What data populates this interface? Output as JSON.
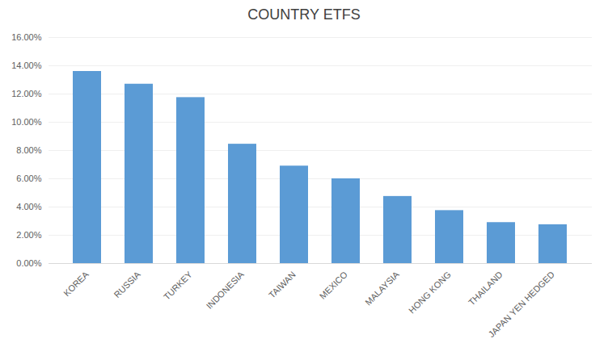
{
  "chart_data": {
    "type": "bar",
    "title": "COUNTRY ETFS",
    "categories": [
      "KOREA",
      "RUSSIA",
      "TURKEY",
      "INDONESIA",
      "TAIWAN",
      "MEXICO",
      "MALAYSIA",
      "HONG KONG",
      "THAILAND",
      "JAPAN YEN HEDGED"
    ],
    "values": [
      0.136,
      0.127,
      0.1175,
      0.0845,
      0.069,
      0.06,
      0.0475,
      0.0375,
      0.029,
      0.0275
    ],
    "color": "#5B9BD5",
    "ylim": [
      0,
      0.16
    ],
    "yticks": [
      {
        "value": 0.0,
        "label": "0.00%"
      },
      {
        "value": 0.02,
        "label": "2.00%"
      },
      {
        "value": 0.04,
        "label": "4.00%"
      },
      {
        "value": 0.06,
        "label": "6.00%"
      },
      {
        "value": 0.08,
        "label": "8.00%"
      },
      {
        "value": 0.1,
        "label": "10.00%"
      },
      {
        "value": 0.12,
        "label": "12.00%"
      },
      {
        "value": 0.14,
        "label": "14.00%"
      },
      {
        "value": 0.16,
        "label": "16.00%"
      }
    ],
    "grid": true
  }
}
